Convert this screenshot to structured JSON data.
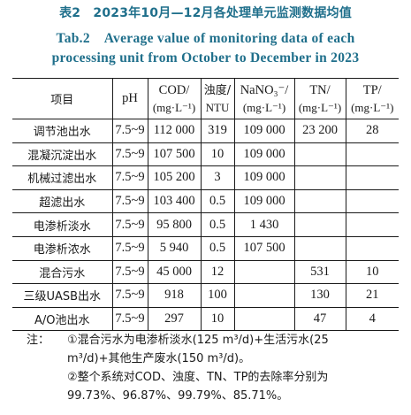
{
  "caption": {
    "cn": "表2　2023年10月—12月各处理单元监测数据均值",
    "en_line1": "Tab.2　Average value of monitoring data of each",
    "en_line2": "processing unit from October to December in 2023"
  },
  "table": {
    "headers": {
      "item": "项目",
      "ph": "pH",
      "cod_l1": "COD/",
      "cod_l2": "(mg·L⁻¹)",
      "turb_l1": "浊度/",
      "turb_l2": "NTU",
      "nano3_l1": "NaNO₃⁻/",
      "nano3_l2": "(mg·L⁻¹)",
      "tn_l1": "TN/",
      "tn_l2": "(mg·L⁻¹)",
      "tp_l1": "TP/",
      "tp_l2": "(mg·L⁻¹)"
    },
    "rows": [
      {
        "name": "调节池出水",
        "ph": "7.5~9",
        "cod": "112 000",
        "turbidity": "319",
        "nano3": "109 000",
        "tn": "23 200",
        "tp": "28"
      },
      {
        "name": "混凝沉淀出水",
        "ph": "7.5~9",
        "cod": "107 500",
        "turbidity": "10",
        "nano3": "109 000",
        "tn": "",
        "tp": ""
      },
      {
        "name": "机械过滤出水",
        "ph": "7.5~9",
        "cod": "105 200",
        "turbidity": "3",
        "nano3": "109 000",
        "tn": "",
        "tp": ""
      },
      {
        "name": "超滤出水",
        "ph": "7.5~9",
        "cod": "103 400",
        "turbidity": "0.5",
        "nano3": "109 000",
        "tn": "",
        "tp": ""
      },
      {
        "name": "电渗析淡水",
        "ph": "7.5~9",
        "cod": "95 800",
        "turbidity": "0.5",
        "nano3": "1 430",
        "tn": "",
        "tp": ""
      },
      {
        "name": "电渗析浓水",
        "ph": "7.5~9",
        "cod": "5 940",
        "turbidity": "0.5",
        "nano3": "107 500",
        "tn": "",
        "tp": ""
      },
      {
        "name": "混合污水",
        "ph": "7.5~9",
        "cod": "45 000",
        "turbidity": "12",
        "nano3": "",
        "tn": "531",
        "tp": "10"
      },
      {
        "name": "三级UASB出水",
        "ph": "7.5~9",
        "cod": "918",
        "turbidity": "100",
        "nano3": "",
        "tn": "130",
        "tp": "21"
      },
      {
        "name": "A/O池出水",
        "ph": "7.5~9",
        "cod": "297",
        "turbidity": "10",
        "nano3": "",
        "tn": "47",
        "tp": "4"
      }
    ]
  },
  "notes": {
    "label": "注：",
    "note1_line1": "①混合污水为电渗析淡水(125 m³/d)+生活污水(25",
    "note1_line2": "m³/d)+其他生产废水(150 m³/d)。",
    "note2_line1": "②整个系统对COD、浊度、TN、TP的去除率分别为",
    "note2_line2": "99.73%、96.87%、99.79%、85.71%。"
  }
}
